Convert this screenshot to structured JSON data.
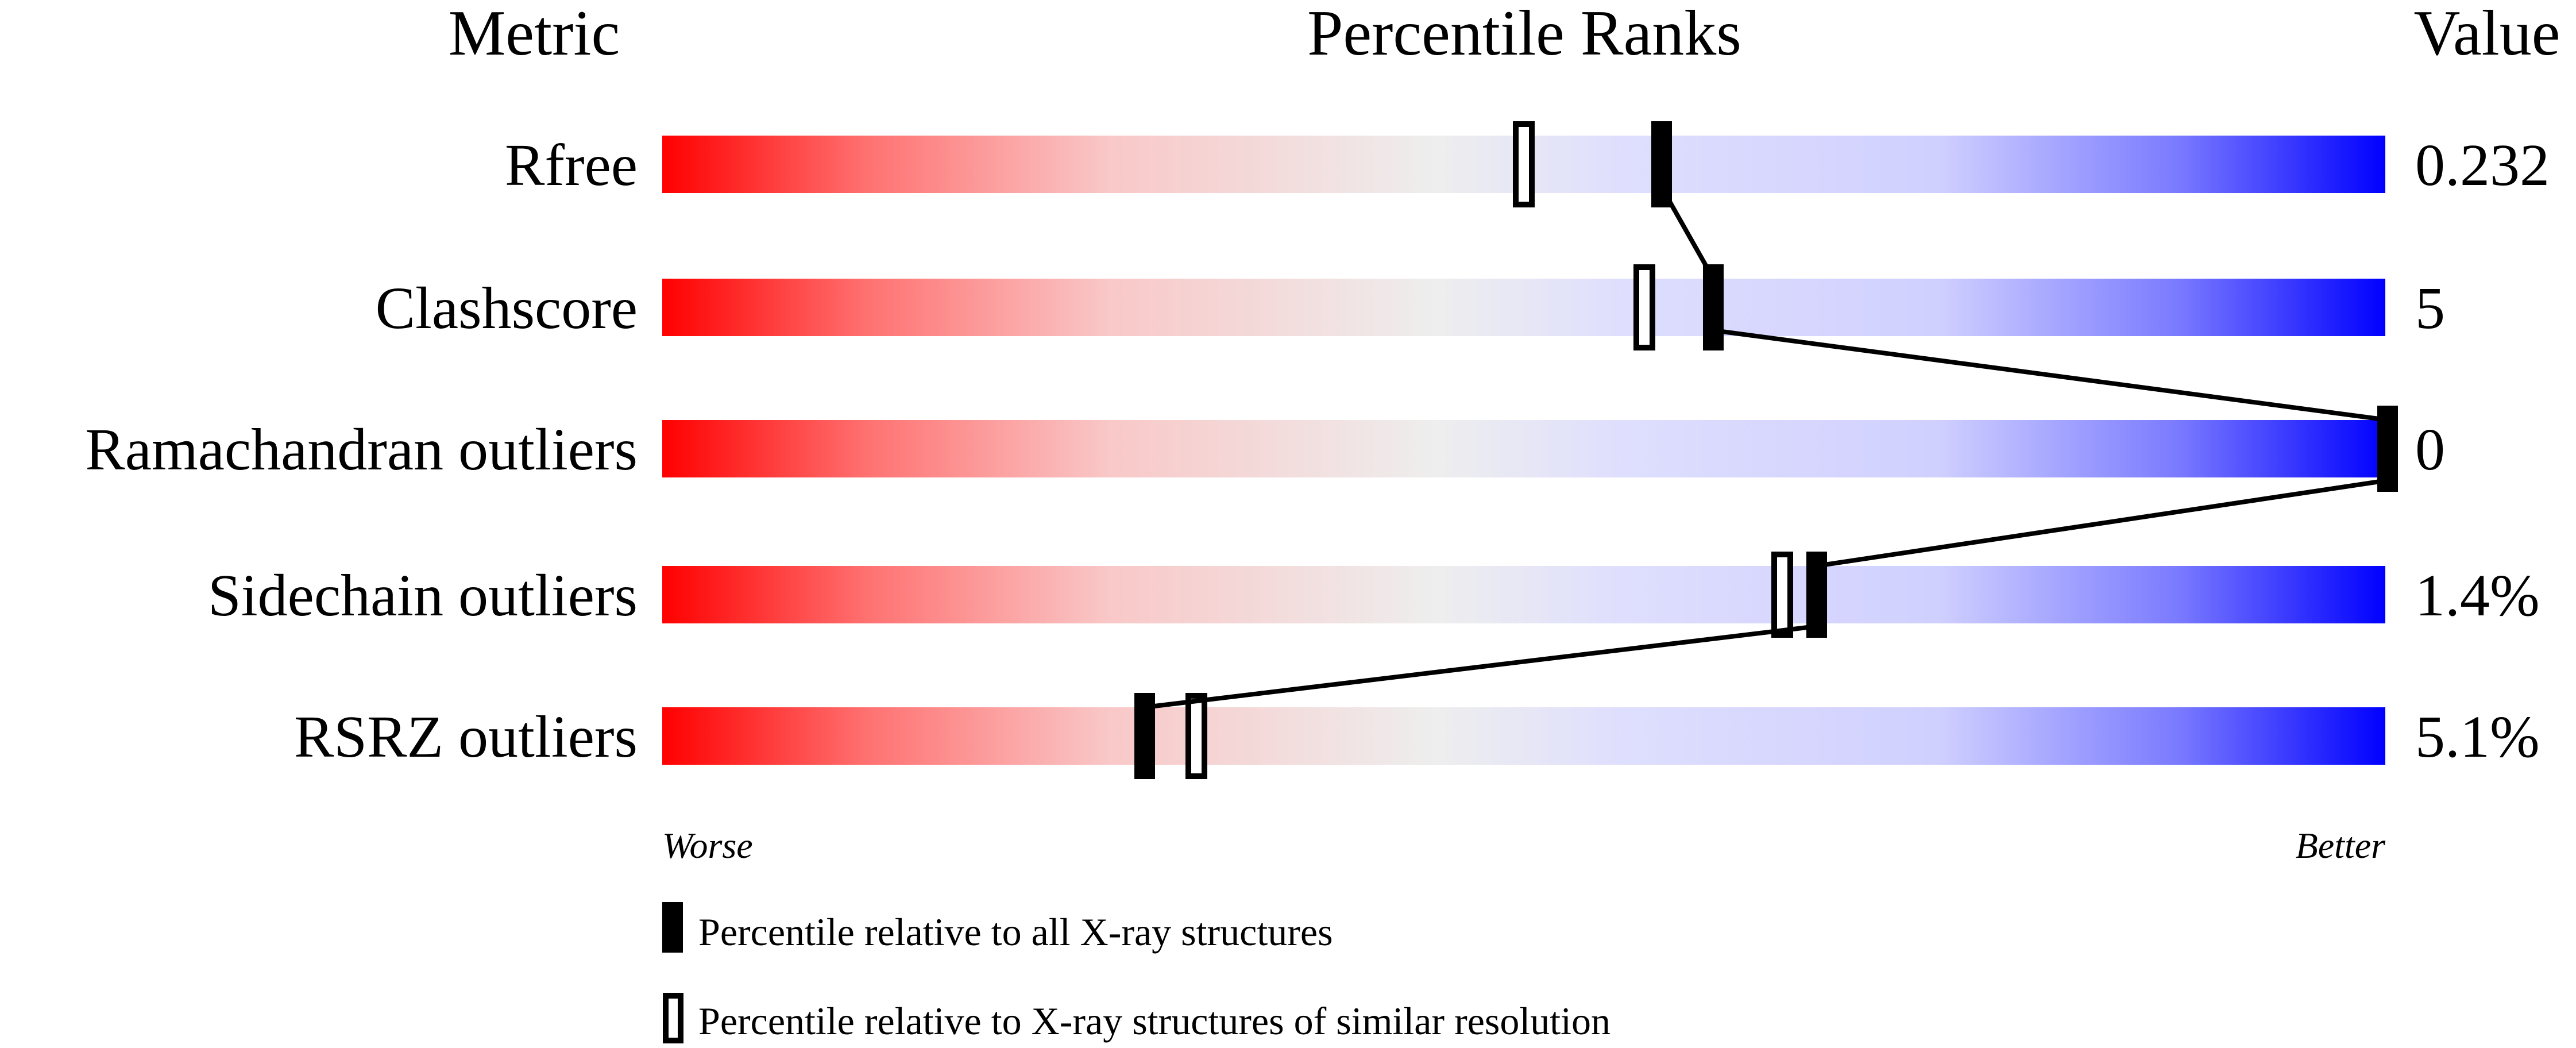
{
  "chart_data": {
    "type": "percentile-slider",
    "headers": {
      "metric": "Metric",
      "ranks": "Percentile Ranks",
      "value": "Value"
    },
    "xlim": [
      0,
      100
    ],
    "metrics": [
      {
        "name": "Rfree",
        "value": "0.232",
        "percentile_all": 58,
        "percentile_similar": 50
      },
      {
        "name": "Clashscore",
        "value": "5",
        "percentile_all": 61,
        "percentile_similar": 57
      },
      {
        "name": "Ramachandran outliers",
        "value": "0",
        "percentile_all": 100,
        "percentile_similar": 100
      },
      {
        "name": "Sidechain outliers",
        "value": "1.4%",
        "percentile_all": 67,
        "percentile_similar": 65
      },
      {
        "name": "RSRZ outliers",
        "value": "5.1%",
        "percentile_all": 28,
        "percentile_similar": 31
      }
    ],
    "axis": {
      "worse": "Worse",
      "better": "Better"
    },
    "legend": {
      "all": "Percentile relative to all X-ray structures",
      "similar": "Percentile relative to X-ray structures of similar resolution"
    },
    "colors": {
      "worse": "#ff0000",
      "middle": "#eeeeee",
      "better": "#0000ff"
    }
  }
}
